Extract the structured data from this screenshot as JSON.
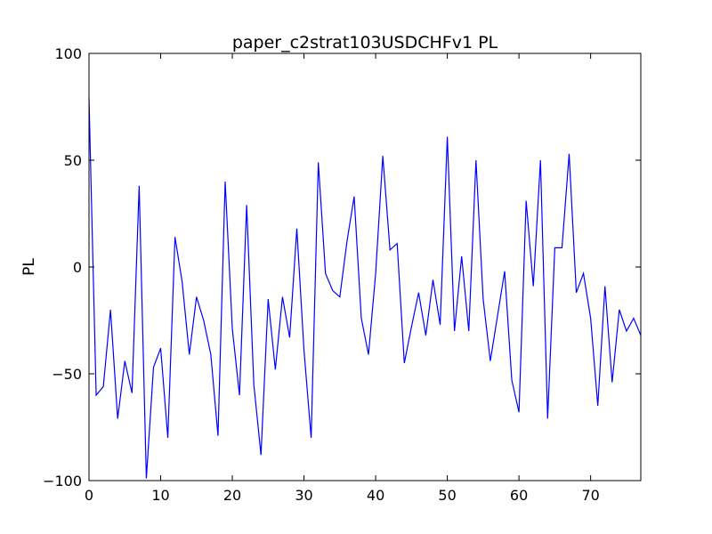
{
  "chart_data": {
    "type": "line",
    "title": "paper_c2strat103USDCHFv1 PL",
    "xlabel": "",
    "ylabel": "PL",
    "xlim": [
      0,
      77
    ],
    "ylim": [
      -100,
      100
    ],
    "x_ticks": [
      0,
      10,
      20,
      30,
      40,
      50,
      60,
      70
    ],
    "x_tick_labels": [
      "0",
      "10",
      "20",
      "30",
      "40",
      "50",
      "60",
      "70"
    ],
    "y_ticks": [
      100,
      50,
      0,
      -50,
      -100
    ],
    "y_tick_labels": [
      "100",
      "50",
      "0",
      "−50",
      "−100"
    ],
    "grid": false,
    "series": [
      {
        "color": "#0000ff",
        "x": [
          0,
          1,
          2,
          3,
          4,
          5,
          6,
          7,
          8,
          9,
          10,
          11,
          12,
          13,
          14,
          15,
          16,
          17,
          18,
          19,
          20,
          21,
          22,
          23,
          24,
          25,
          26,
          27,
          28,
          29,
          30,
          31,
          32,
          33,
          34,
          35,
          36,
          37,
          38,
          39,
          40,
          41,
          42,
          43,
          44,
          45,
          46,
          47,
          48,
          49,
          50,
          51,
          52,
          53,
          54,
          55,
          56,
          57,
          58,
          59,
          60,
          61,
          62,
          63,
          64,
          65,
          66,
          67,
          68,
          69,
          70,
          71,
          72,
          73,
          74,
          75,
          76,
          77
        ],
        "values": [
          79,
          -60,
          -56,
          -20,
          -71,
          -44,
          -59,
          38,
          -99,
          -47,
          -38,
          -80,
          14,
          -7,
          -41,
          -14,
          -25,
          -41,
          -79,
          40,
          -29,
          -60,
          29,
          -55,
          -88,
          -15,
          -48,
          -14,
          -33,
          18,
          -39,
          -80,
          49,
          -3,
          -11,
          -14,
          12,
          33,
          -24,
          -41,
          -3,
          52,
          8,
          11,
          -45,
          -28,
          -12,
          -32,
          -6,
          -27,
          61,
          -30,
          5,
          -30,
          50,
          -15,
          -44,
          -23,
          -2,
          -53,
          -68,
          31,
          -9,
          50,
          -71,
          9,
          9,
          53,
          -12,
          -3,
          -24,
          -65,
          -9,
          -54,
          -20,
          -30,
          -24,
          -32
        ]
      }
    ]
  }
}
